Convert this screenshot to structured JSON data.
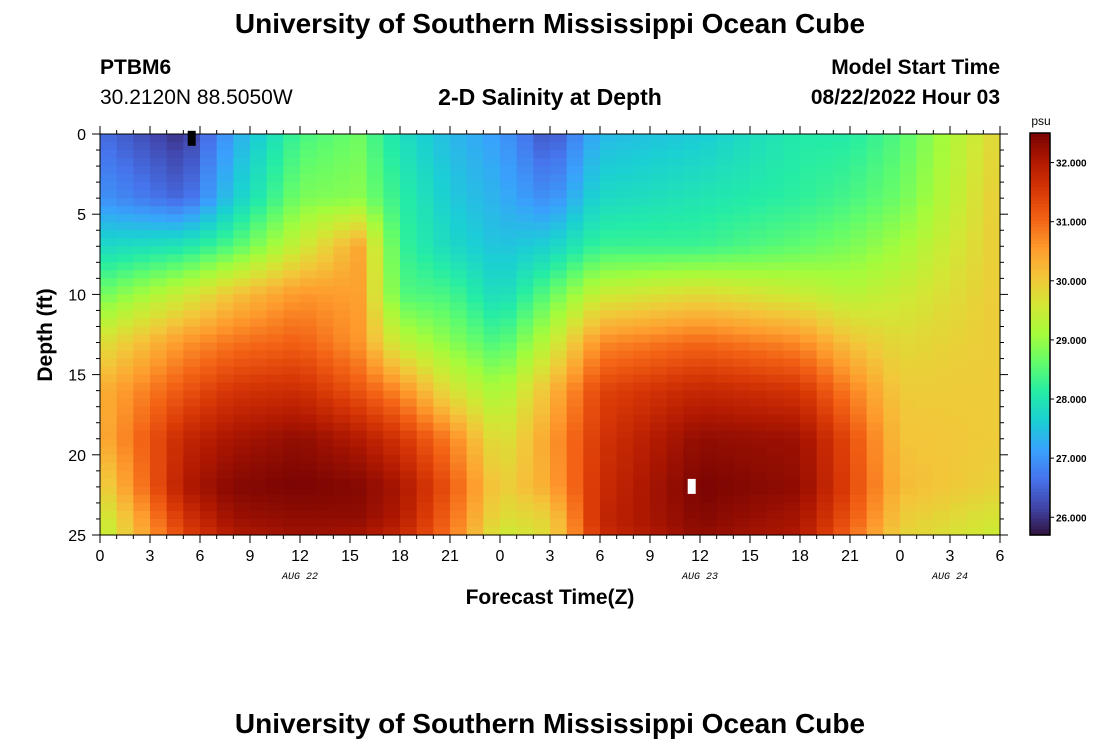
{
  "header": {
    "title": "University of Southern Mississippi Ocean Cube",
    "station": "PTBM6",
    "location": "30.2120N  88.5050W",
    "subtitle": "2-D Salinity at Depth",
    "model_start_label": "Model Start Time",
    "model_start_value": "08/22/2022 Hour 03"
  },
  "footer": {
    "title": "University of Southern Mississippi Ocean Cube"
  },
  "chart_data": {
    "type": "heatmap",
    "title": "2-D Salinity at Depth",
    "xlabel": "Forecast Time(Z)",
    "ylabel": "Depth (ft)",
    "x_tick_labels": [
      "0",
      "3",
      "6",
      "9",
      "12",
      "15",
      "18",
      "21",
      "0",
      "3",
      "6",
      "9",
      "12",
      "15",
      "18",
      "21",
      "0",
      "3",
      "6"
    ],
    "x_range_hours": [
      0,
      54
    ],
    "date_labels": [
      {
        "label": "AUG 22",
        "hour": 12
      },
      {
        "label": "AUG 23",
        "hour": 36
      },
      {
        "label": "AUG 24",
        "hour": 51
      }
    ],
    "y_tick_labels": [
      "0",
      "5",
      "10",
      "15",
      "20",
      "25"
    ],
    "y_range_ft": [
      0,
      25
    ],
    "y_inverted": true,
    "colorbar": {
      "unit": "psu",
      "range": [
        25.7,
        32.5
      ],
      "tick_values": [
        26.0,
        27.0,
        28.0,
        29.0,
        30.0,
        31.0,
        32.0
      ],
      "tick_labels": [
        "26.000",
        "27.000",
        "28.000",
        "29.000",
        "30.000",
        "31.000",
        "32.000"
      ],
      "colors": [
        "#30123b",
        "#4145ab",
        "#4675ed",
        "#39a2fc",
        "#1bcfd4",
        "#24eca6",
        "#61fc6c",
        "#a4fc3b",
        "#d1e834",
        "#f3c63a",
        "#fe9b2d",
        "#f36315",
        "#d93806",
        "#b11901",
        "#7a0403"
      ]
    },
    "grid": false,
    "legend": "colorbar-right",
    "salinity_grid_psu": {
      "hours": [
        0,
        5,
        8,
        12,
        15.5,
        18,
        21,
        24,
        27,
        30,
        36,
        42,
        45,
        48,
        54
      ],
      "depths_ft": [
        0,
        4,
        7,
        10,
        13,
        16,
        19,
        22,
        24,
        25
      ],
      "values": [
        [
          26.6,
          26.0,
          27.2,
          28.4,
          28.7,
          27.9,
          27.4,
          27.1,
          26.3,
          27.4,
          27.6,
          28.1,
          28.1,
          28.5,
          29.9
        ],
        [
          27.0,
          26.5,
          27.6,
          28.8,
          28.9,
          28.2,
          27.6,
          27.3,
          26.9,
          27.8,
          28.0,
          28.2,
          28.4,
          28.7,
          30.0
        ],
        [
          27.8,
          28.0,
          28.5,
          29.5,
          30.4,
          28.3,
          27.8,
          27.5,
          27.7,
          28.3,
          28.3,
          28.6,
          28.8,
          29.1,
          30.0
        ],
        [
          28.7,
          29.5,
          30.1,
          30.6,
          30.5,
          28.5,
          28.4,
          27.8,
          28.6,
          29.5,
          29.8,
          29.5,
          29.3,
          29.5,
          30.0
        ],
        [
          29.7,
          30.6,
          30.9,
          31.1,
          30.6,
          29.4,
          28.9,
          28.4,
          29.4,
          30.7,
          31.0,
          30.7,
          30.1,
          29.8,
          30.0
        ],
        [
          30.3,
          31.2,
          31.6,
          31.7,
          31.2,
          30.7,
          29.7,
          29.1,
          30.2,
          31.4,
          31.8,
          31.6,
          30.8,
          30.0,
          30.0
        ],
        [
          30.3,
          31.8,
          32.1,
          32.3,
          32.0,
          31.6,
          30.8,
          29.6,
          30.5,
          31.6,
          32.3,
          32.2,
          31.3,
          30.1,
          30.0
        ],
        [
          29.8,
          32.0,
          32.4,
          32.5,
          32.4,
          32.1,
          31.2,
          29.9,
          30.4,
          31.7,
          32.5,
          32.3,
          31.4,
          30.2,
          29.9
        ],
        [
          29.4,
          31.6,
          32.2,
          32.3,
          32.3,
          32.0,
          31.0,
          29.7,
          29.9,
          31.8,
          32.4,
          32.1,
          31.2,
          30.0,
          29.6
        ],
        [
          29.3,
          31.4,
          32.0,
          32.2,
          32.1,
          31.8,
          30.9,
          29.5,
          29.8,
          31.7,
          32.3,
          32.0,
          31.0,
          29.9,
          29.5
        ]
      ]
    },
    "markers": [
      {
        "hour": 5.5,
        "depth_ft": 0.3,
        "color": "#000000"
      },
      {
        "hour": 35.5,
        "depth_ft": 22.0,
        "color": "#ffffff"
      }
    ]
  }
}
